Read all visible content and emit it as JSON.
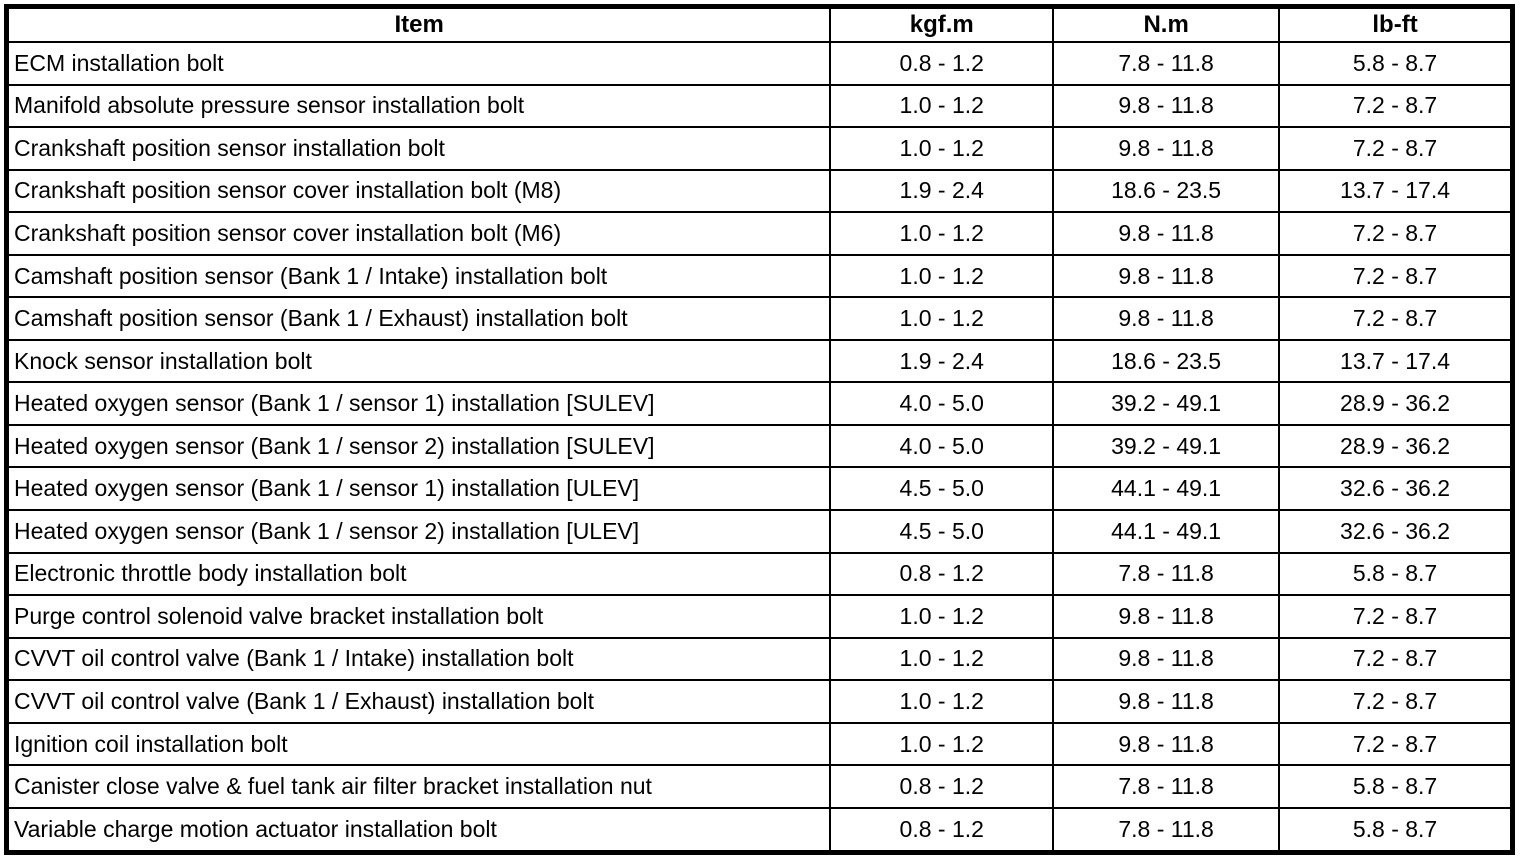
{
  "page": {
    "background_color": "#ffffff",
    "border_color": "#000000",
    "text_color": "#000000"
  },
  "table": {
    "columns": [
      {
        "label": "Item"
      },
      {
        "label": "kgf.m"
      },
      {
        "label": "N.m"
      },
      {
        "label": "lb-ft"
      }
    ],
    "rows": [
      {
        "item": "ECM installation bolt",
        "kgf_m": "0.8 - 1.2",
        "n_m": "7.8 - 11.8",
        "lb_ft": "5.8 - 8.7"
      },
      {
        "item": "Manifold absolute pressure sensor installation bolt",
        "kgf_m": "1.0 - 1.2",
        "n_m": "9.8 - 11.8",
        "lb_ft": "7.2 - 8.7"
      },
      {
        "item": "Crankshaft position sensor installation bolt",
        "kgf_m": "1.0 - 1.2",
        "n_m": "9.8 - 11.8",
        "lb_ft": "7.2 - 8.7"
      },
      {
        "item": "Crankshaft position sensor cover installation bolt (M8)",
        "kgf_m": "1.9 - 2.4",
        "n_m": "18.6 - 23.5",
        "lb_ft": "13.7 - 17.4"
      },
      {
        "item": "Crankshaft position sensor cover installation bolt (M6)",
        "kgf_m": "1.0 - 1.2",
        "n_m": "9.8 - 11.8",
        "lb_ft": "7.2 - 8.7"
      },
      {
        "item": "Camshaft position sensor (Bank 1 / Intake) installation bolt",
        "kgf_m": "1.0 - 1.2",
        "n_m": "9.8 - 11.8",
        "lb_ft": "7.2 - 8.7"
      },
      {
        "item": "Camshaft position sensor (Bank 1 / Exhaust) installation bolt",
        "kgf_m": "1.0 - 1.2",
        "n_m": "9.8 - 11.8",
        "lb_ft": "7.2 - 8.7"
      },
      {
        "item": "Knock sensor installation bolt",
        "kgf_m": "1.9 - 2.4",
        "n_m": "18.6 - 23.5",
        "lb_ft": "13.7 - 17.4"
      },
      {
        "item": "Heated oxygen sensor (Bank 1 / sensor 1) installation [SULEV]",
        "kgf_m": "4.0 - 5.0",
        "n_m": "39.2 - 49.1",
        "lb_ft": "28.9 - 36.2"
      },
      {
        "item": "Heated oxygen sensor (Bank 1 / sensor 2) installation [SULEV]",
        "kgf_m": "4.0 - 5.0",
        "n_m": "39.2 - 49.1",
        "lb_ft": "28.9 - 36.2"
      },
      {
        "item": "Heated oxygen sensor (Bank 1 / sensor 1) installation [ULEV]",
        "kgf_m": "4.5 - 5.0",
        "n_m": "44.1 - 49.1",
        "lb_ft": "32.6 - 36.2"
      },
      {
        "item": "Heated oxygen sensor (Bank 1 / sensor 2) installation [ULEV]",
        "kgf_m": "4.5 - 5.0",
        "n_m": "44.1 - 49.1",
        "lb_ft": "32.6 - 36.2"
      },
      {
        "item": "Electronic throttle body installation bolt",
        "kgf_m": "0.8 - 1.2",
        "n_m": "7.8 - 11.8",
        "lb_ft": "5.8 - 8.7"
      },
      {
        "item": "Purge control solenoid valve bracket installation bolt",
        "kgf_m": "1.0 - 1.2",
        "n_m": "9.8 - 11.8",
        "lb_ft": "7.2 - 8.7"
      },
      {
        "item": "CVVT oil control valve (Bank 1 / Intake) installation bolt",
        "kgf_m": "1.0 - 1.2",
        "n_m": "9.8 - 11.8",
        "lb_ft": "7.2 - 8.7"
      },
      {
        "item": "CVVT oil control valve (Bank 1 / Exhaust) installation bolt",
        "kgf_m": "1.0 - 1.2",
        "n_m": "9.8 - 11.8",
        "lb_ft": "7.2 - 8.7"
      },
      {
        "item": "Ignition coil installation bolt",
        "kgf_m": "1.0 - 1.2",
        "n_m": "9.8 - 11.8",
        "lb_ft": "7.2 - 8.7"
      },
      {
        "item": "Canister close valve & fuel tank air filter bracket installation nut",
        "kgf_m": "0.8 - 1.2",
        "n_m": "7.8 - 11.8",
        "lb_ft": "5.8 - 8.7"
      },
      {
        "item": "Variable charge motion actuator installation bolt",
        "kgf_m": "0.8 - 1.2",
        "n_m": "7.8 - 11.8",
        "lb_ft": "5.8 - 8.7"
      }
    ]
  }
}
